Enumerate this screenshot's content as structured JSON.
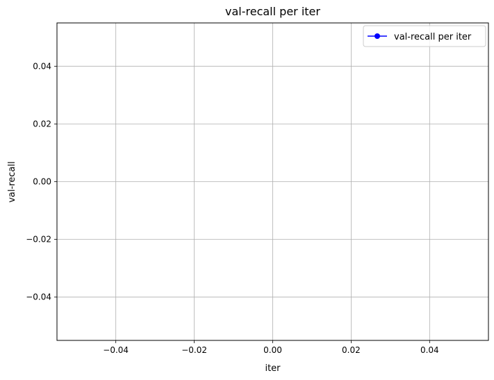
{
  "chart_data": {
    "type": "line",
    "title": "val-recall per iter",
    "xlabel": "iter",
    "ylabel": "val-recall",
    "xlim": [
      -0.055,
      0.055
    ],
    "ylim": [
      -0.055,
      0.055
    ],
    "x_ticks": [
      -0.04,
      -0.02,
      0.0,
      0.02,
      0.04
    ],
    "y_ticks": [
      -0.04,
      -0.02,
      0.0,
      0.02,
      0.04
    ],
    "x_tick_labels": [
      "−0.04",
      "−0.02",
      "0.00",
      "0.02",
      "0.04"
    ],
    "y_tick_labels": [
      "−0.04",
      "−0.02",
      "0.00",
      "0.02",
      "0.04"
    ],
    "grid": true,
    "legend_position": "top-right",
    "series": [
      {
        "name": "val-recall per iter",
        "color": "#0000ff",
        "marker": "circle",
        "x": [],
        "y": []
      }
    ]
  }
}
